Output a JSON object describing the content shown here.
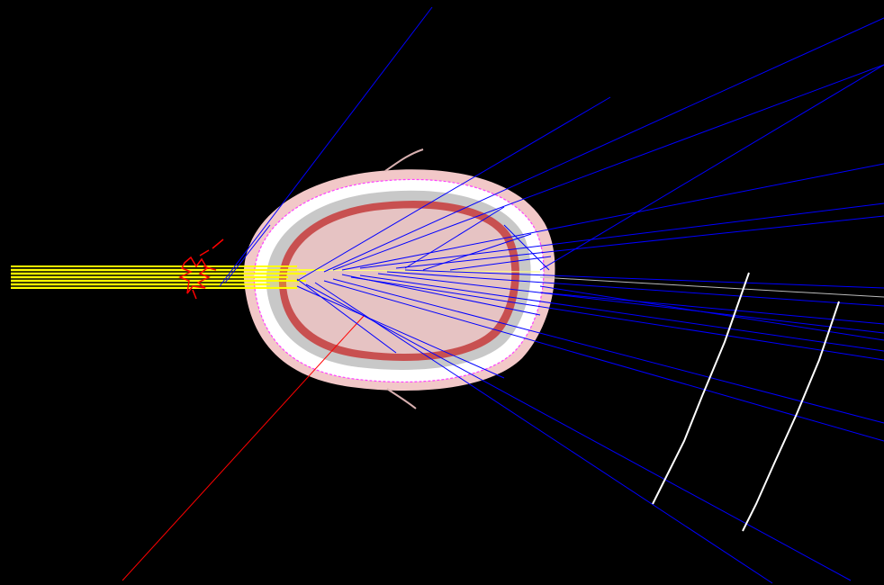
{
  "scene": {
    "background_color": "#000000",
    "colors": {
      "incident_beam": "#ffff00",
      "scattered_ray": "#0000ff",
      "secondary_track": "#ff0000",
      "skin": "#f2c8c8",
      "skull": "#ffffff",
      "bone_gray": "#c8c8c8",
      "tissue_rim": "#c85050",
      "brain": "#e6c3c3",
      "outline": "#ff40ff",
      "detector": "#ffffff"
    }
  }
}
